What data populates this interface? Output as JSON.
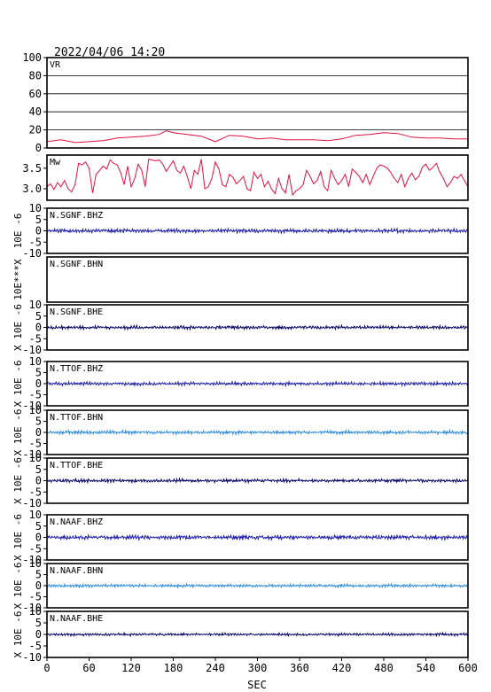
{
  "header": {
    "datetime": "2022/04/06 14:20"
  },
  "colors": {
    "frame": "#000000",
    "grid": "#000000",
    "vr": "#e01040",
    "mw": "#e01040",
    "bhz": "#1a1aaa",
    "bhn": "#2a8ae0",
    "bhe": "#000066"
  },
  "chart_data": [
    {
      "type": "line",
      "label": "VR",
      "ylim": [
        0,
        100
      ],
      "yticks": [
        0,
        20,
        40,
        60,
        80,
        100
      ],
      "grid": true,
      "color": "vr",
      "x": [
        0,
        20,
        40,
        60,
        80,
        100,
        120,
        140,
        160,
        170,
        180,
        200,
        220,
        240,
        260,
        280,
        300,
        320,
        340,
        360,
        380,
        400,
        420,
        440,
        460,
        480,
        500,
        520,
        540,
        560,
        580,
        600
      ],
      "values": [
        7,
        9,
        6,
        7,
        8,
        11,
        12,
        13,
        15,
        19,
        17,
        15,
        13,
        7,
        14,
        13,
        10,
        11,
        9,
        9,
        9,
        8,
        10,
        14,
        15,
        17,
        16,
        12,
        11,
        11,
        10,
        10
      ]
    },
    {
      "type": "line",
      "label": "Mw",
      "ylim": [
        2.72,
        3.82
      ],
      "yticks": [
        3.0,
        3.5
      ],
      "ytick_labels": [
        "3.0",
        "3.5"
      ],
      "grid": false,
      "color": "mw",
      "x": [
        0,
        5,
        10,
        15,
        20,
        25,
        30,
        35,
        40,
        45,
        50,
        55,
        60,
        65,
        70,
        75,
        80,
        85,
        90,
        95,
        100,
        105,
        110,
        115,
        120,
        125,
        130,
        135,
        140,
        145,
        150,
        155,
        160,
        165,
        170,
        175,
        180,
        185,
        190,
        195,
        200,
        205,
        210,
        215,
        220,
        225,
        230,
        235,
        240,
        245,
        250,
        255,
        260,
        265,
        270,
        275,
        280,
        285,
        290,
        295,
        300,
        305,
        310,
        315,
        320,
        325,
        330,
        335,
        340,
        345,
        350,
        355,
        360,
        365,
        370,
        375,
        380,
        385,
        390,
        395,
        400,
        405,
        410,
        415,
        420,
        425,
        430,
        435,
        440,
        445,
        450,
        455,
        460,
        465,
        470,
        475,
        480,
        485,
        490,
        495,
        500,
        505,
        510,
        515,
        520,
        525,
        530,
        535,
        540,
        545,
        550,
        555,
        560,
        565,
        570,
        575,
        580,
        585,
        590,
        595,
        600
      ],
      "values": [
        3.05,
        3.12,
        2.98,
        3.15,
        3.05,
        3.2,
        3.0,
        2.92,
        3.1,
        3.62,
        3.58,
        3.65,
        3.5,
        2.9,
        3.35,
        3.45,
        3.55,
        3.48,
        3.7,
        3.62,
        3.58,
        3.4,
        3.1,
        3.55,
        3.05,
        3.25,
        3.6,
        3.45,
        3.05,
        3.72,
        3.7,
        3.68,
        3.7,
        3.6,
        3.42,
        3.55,
        3.68,
        3.45,
        3.38,
        3.55,
        3.3,
        3.0,
        3.45,
        3.35,
        3.72,
        3.0,
        3.05,
        3.25,
        3.65,
        3.48,
        3.1,
        3.05,
        3.35,
        3.28,
        3.12,
        3.2,
        3.3,
        3.0,
        2.95,
        3.4,
        3.25,
        3.35,
        3.05,
        3.18,
        3.0,
        2.88,
        3.25,
        3.0,
        2.9,
        3.35,
        2.85,
        2.95,
        3.0,
        3.1,
        3.45,
        3.3,
        3.12,
        3.2,
        3.42,
        3.05,
        2.95,
        3.45,
        3.25,
        3.1,
        3.2,
        3.35,
        3.05,
        3.48,
        3.4,
        3.3,
        3.15,
        3.35,
        3.1,
        3.3,
        3.5,
        3.58,
        3.55,
        3.5,
        3.4,
        3.25,
        3.15,
        3.35,
        3.05,
        3.25,
        3.38,
        3.22,
        3.3,
        3.52,
        3.6,
        3.45,
        3.52,
        3.62,
        3.4,
        3.25,
        3.05,
        3.15,
        3.3,
        3.25,
        3.35,
        3.2,
        3.05
      ]
    },
    {
      "type": "line",
      "label": "N.SGNF.BHZ",
      "ylabel": "10E -6",
      "ylim": [
        -10,
        10
      ],
      "yticks": [
        -10,
        -5,
        0,
        5,
        10
      ],
      "show_xlabels": false,
      "color": "bhz",
      "amplitude": 0.9
    },
    {
      "type": "line",
      "label": "N.SGNF.BHN",
      "ylabel": "10E***X",
      "ylim": [
        -10,
        10
      ],
      "yticks": [],
      "show_xlabels": false,
      "color": "bhn",
      "amplitude": 0
    },
    {
      "type": "line",
      "label": "N.SGNF.BHE",
      "ylabel": "X 10E -6",
      "ylim": [
        -10,
        10
      ],
      "yticks": [
        -10,
        -5,
        0,
        5,
        10
      ],
      "show_xlabels": false,
      "color": "bhe",
      "amplitude": 0.8
    },
    {
      "type": "line",
      "label": "N.TTOF.BHZ",
      "ylabel": "X 10E -6",
      "ylim": [
        -10,
        10
      ],
      "yticks": [
        -10,
        -5,
        0,
        5,
        10
      ],
      "show_xlabels": false,
      "color": "bhz",
      "amplitude": 0.8
    },
    {
      "type": "line",
      "label": "N.TTOF.BHN",
      "ylabel": "X 10E -6",
      "ylim": [
        -10,
        10
      ],
      "yticks": [
        -10,
        -5,
        0,
        5,
        10
      ],
      "show_xlabels": false,
      "color": "bhn",
      "amplitude": 0.8
    },
    {
      "type": "line",
      "label": "N.TTOF.BHE",
      "ylabel": "X 10E -6",
      "ylim": [
        -10,
        10
      ],
      "yticks": [
        -10,
        -5,
        0,
        5,
        10
      ],
      "show_xlabels": false,
      "color": "bhe",
      "amplitude": 0.8
    },
    {
      "type": "line",
      "label": "N.NAAF.BHZ",
      "ylabel": "X 10E -6",
      "ylim": [
        -10,
        10
      ],
      "yticks": [
        -10,
        -5,
        0,
        5,
        10
      ],
      "show_xlabels": false,
      "color": "bhz",
      "amplitude": 1.0
    },
    {
      "type": "line",
      "label": "N.NAAF.BHN",
      "ylabel": "X 10E -6",
      "ylim": [
        -10,
        10
      ],
      "yticks": [
        -10,
        -5,
        0,
        5,
        10
      ],
      "show_xlabels": false,
      "color": "bhn",
      "amplitude": 0.7
    },
    {
      "type": "line",
      "label": "N.NAAF.BHE",
      "ylabel": "X 10E -6",
      "ylim": [
        -10,
        10
      ],
      "yticks": [
        -10,
        -5,
        0,
        5,
        10
      ],
      "show_xlabels": true,
      "color": "bhe",
      "amplitude": 0.6
    }
  ],
  "x_axis": {
    "label": "SEC",
    "range": [
      0,
      600
    ],
    "ticks": [
      0,
      60,
      120,
      180,
      240,
      300,
      360,
      420,
      480,
      540,
      600
    ]
  }
}
